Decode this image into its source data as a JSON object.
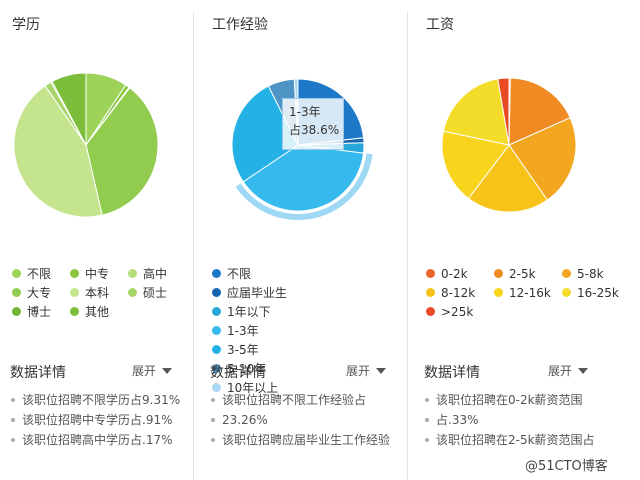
{
  "watermark": "@51CTO博客",
  "tooltip": {
    "line1": "1-3年",
    "line2": "占38.6%"
  },
  "panels": [
    {
      "title": "学历",
      "details_title": "数据详情",
      "toggle_label": "展开",
      "details": [
        "该职位招聘不限学历占9.31%",
        "该职位招聘中专学历占.91%",
        "该职位招聘高中学历占.17%"
      ]
    },
    {
      "title": "工作经验",
      "details_title": "数据详情",
      "toggle_label": "展开",
      "details": [
        "该职位招聘不限工作经验占",
        "23.26%",
        "该职位招聘应届毕业生工作经验"
      ]
    },
    {
      "title": "工资",
      "details_title": "数据详情",
      "toggle_label": "展开",
      "details": [
        "该职位招聘在0-2k薪资范围",
        "占.33%",
        "该职位招聘在2-5k薪资范围占"
      ]
    }
  ],
  "chart_data": [
    {
      "type": "pie",
      "title": "学历",
      "legend_placement": "bottom",
      "series": [
        {
          "name": "不限",
          "value": 9.31,
          "color": "#9ed35a"
        },
        {
          "name": "中专",
          "value": 0.91,
          "color": "#8cc63f"
        },
        {
          "name": "高中",
          "value": 0.17,
          "color": "#b6de7a"
        },
        {
          "name": "大专",
          "value": 36,
          "color": "#92cc4e"
        },
        {
          "name": "本科",
          "value": 44,
          "color": "#c4e58e"
        },
        {
          "name": "硕士",
          "value": 1.5,
          "color": "#a6d468"
        },
        {
          "name": "博士",
          "value": 0.3,
          "color": "#6fb533"
        },
        {
          "name": "其他",
          "value": 7.8,
          "color": "#7cbd3c"
        }
      ]
    },
    {
      "type": "pie",
      "title": "工作经验",
      "legend_placement": "bottom",
      "highlighted": "1-3年",
      "series": [
        {
          "name": "不限",
          "value": 23.26,
          "color": "#1e78c8"
        },
        {
          "name": "应届毕业生",
          "value": 1.2,
          "color": "#1565b0"
        },
        {
          "name": "1年以下",
          "value": 2.5,
          "color": "#27a8d8"
        },
        {
          "name": "1-3年",
          "value": 38.6,
          "color": "#36b9ec"
        },
        {
          "name": "3-5年",
          "value": 27,
          "color": "#24b2e6"
        },
        {
          "name": "5-10年",
          "value": 6.5,
          "color": "#4e94c4"
        },
        {
          "name": "10年以上",
          "value": 0.9,
          "color": "#a8d8f4"
        }
      ]
    },
    {
      "type": "pie",
      "title": "工资",
      "legend_placement": "bottom",
      "series": [
        {
          "name": "0-2k",
          "value": 0.33,
          "color": "#e8642a"
        },
        {
          "name": "2-5k",
          "value": 18,
          "color": "#f08a22"
        },
        {
          "name": "5-8k",
          "value": 22,
          "color": "#f3a61f"
        },
        {
          "name": "8-12k",
          "value": 20,
          "color": "#f7c318"
        },
        {
          "name": "12-16k",
          "value": 18,
          "color": "#f8d51c"
        },
        {
          "name": "16-25k",
          "value": 19,
          "color": "#f4dc2a"
        },
        {
          "name": ">25k",
          "value": 2.67,
          "color": "#e84a24"
        }
      ]
    }
  ]
}
